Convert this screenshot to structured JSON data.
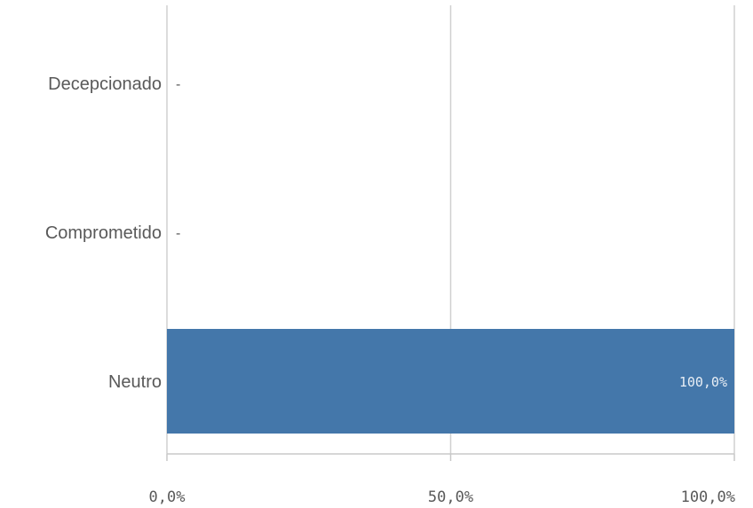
{
  "chart_data": {
    "type": "bar",
    "orientation": "horizontal",
    "categories": [
      "Decepcionado",
      "Comprometido",
      "Neutro"
    ],
    "values": [
      0,
      0,
      100
    ],
    "data_labels": [
      "-",
      "-",
      "100,0%"
    ],
    "xlim": [
      0,
      100
    ],
    "x_ticks": [
      {
        "value": 0,
        "label": "0,0%"
      },
      {
        "value": 50,
        "label": "50,0%"
      },
      {
        "value": 100,
        "label": "100,0%"
      }
    ],
    "grid": true,
    "legend": "none",
    "colors": {
      "bar": "#4477aa",
      "grid": "#d0d0d0",
      "axis": "#c8c8c8",
      "text": "#595959",
      "data_label_inside": "#e8eef5"
    }
  }
}
